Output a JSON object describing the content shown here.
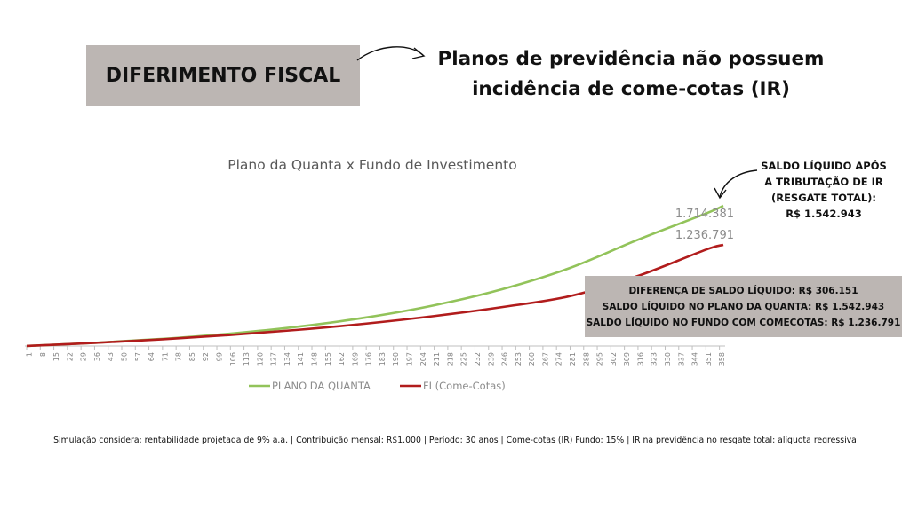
{
  "header": {
    "badge_label": "DIFERIMENTO FISCAL",
    "headline_line1": "Planos de previdência não possuem",
    "headline_line2": "incidência de come-cotas (IR)"
  },
  "chart_data": {
    "type": "line",
    "title": "Plano da Quanta x Fundo de Investimento",
    "x_ticks": [
      "1",
      "8",
      "15",
      "22",
      "29",
      "36",
      "43",
      "50",
      "57",
      "64",
      "71",
      "78",
      "85",
      "92",
      "99",
      "106",
      "113",
      "120",
      "127",
      "134",
      "141",
      "148",
      "155",
      "162",
      "169",
      "176",
      "183",
      "190",
      "197",
      "204",
      "211",
      "218",
      "225",
      "232",
      "239",
      "246",
      "253",
      "260",
      "267",
      "274",
      "281",
      "288",
      "295",
      "302",
      "309",
      "316",
      "323",
      "330",
      "337",
      "344",
      "351",
      "358"
    ],
    "x_range": [
      1,
      360
    ],
    "series": [
      {
        "name": "PLANO DA QUANTA",
        "color": "#92c35a",
        "x": [
          1,
          36,
          71,
          106,
          141,
          176,
          211,
          246,
          281,
          316,
          351,
          360
        ],
        "values": [
          1000,
          39000,
          88000,
          152000,
          237000,
          349000,
          498000,
          695000,
          955000,
          1300000,
          1620000,
          1714381
        ],
        "end_label": "1.714.381"
      },
      {
        "name": "FI (Come-Cotas)",
        "color": "#b11c1c",
        "x": [
          1,
          36,
          71,
          106,
          141,
          176,
          211,
          246,
          281,
          316,
          351,
          360
        ],
        "values": [
          1000,
          38000,
          82000,
          135000,
          198000,
          274000,
          366000,
          476000,
          610000,
          857000,
          1178000,
          1236791
        ],
        "end_label": "1.236.791"
      }
    ],
    "legend_position": "bottom"
  },
  "annotations": {
    "saldo_line1": "SALDO LÍQUIDO APÓS",
    "saldo_line2": "A TRIBUTAÇÃO DE IR",
    "saldo_line3": "(RESGATE TOTAL):",
    "saldo_line4": "R$ 1.542.943",
    "diff_line1": "DIFERENÇA DE SALDO LÍQUIDO: R$ 306.151",
    "diff_line2": "SALDO LÍQUIDO NO PLANO DA QUANTA: R$ 1.542.943",
    "diff_line3": "SALDO LÍQUIDO NO FUNDO COM COMECOTAS: R$ 1.236.791"
  },
  "footer": {
    "text": "Simulação considera: rentabilidade projetada de 9% a.a. | Contribuição mensal: R$1.000 | Período: 30 anos | Come-cotas (IR) Fundo: 15% | IR na previdência no resgate total: alíquota regressiva"
  },
  "colors": {
    "badge_bg": "#bcb6b3",
    "axis": "#bfbfbf",
    "text_gray": "#595959"
  }
}
